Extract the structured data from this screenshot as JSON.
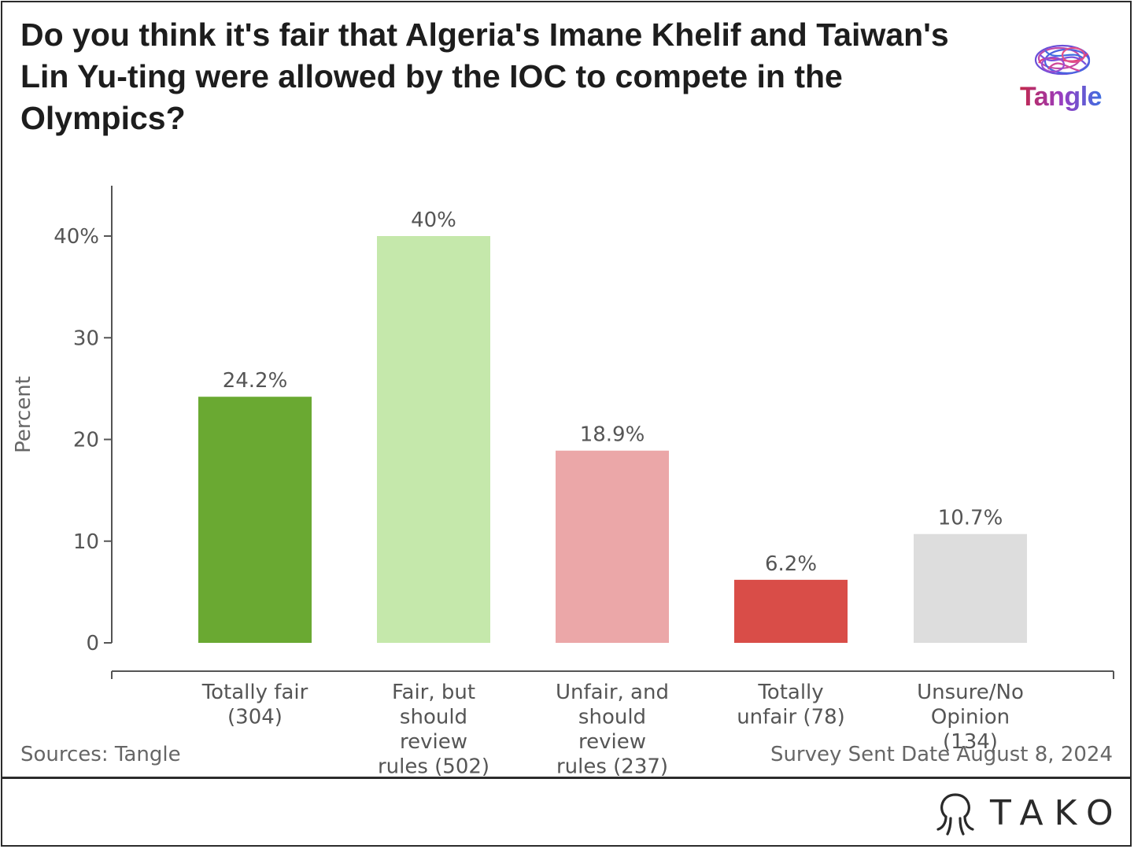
{
  "title": "Do you think it's fair that Algeria's Imane Khelif and Taiwan's Lin Yu-ting were allowed by the IOC to compete in the Olympics?",
  "brand_logo_text": "Tangle",
  "footer_brand": "TAKO",
  "source_text": "Sources: Tangle",
  "survey_text": "Survey Sent Date August 8, 2024",
  "colors": {
    "totally_fair": "#6aa932",
    "fair_review": "#c5e8ab",
    "unfair_review": "#eba7a8",
    "totally_unfair": "#d94d48",
    "unsure": "#dddddd",
    "axis": "#555555"
  },
  "chart_data": {
    "type": "bar",
    "title": "Do you think it's fair that Algeria's Imane Khelif and Taiwan's Lin Yu-ting were allowed by the IOC to compete in the Olympics?",
    "ylabel": "Percent",
    "xlabel": "",
    "ylim": [
      0,
      45
    ],
    "yticks": [
      0,
      10,
      20,
      30,
      40
    ],
    "ytick_labels": [
      "0",
      "10",
      "20",
      "30",
      "40%"
    ],
    "categories": [
      [
        "Totally fair",
        "(304)"
      ],
      [
        "Fair, but",
        "should",
        "review",
        "rules (502)"
      ],
      [
        "Unfair, and",
        "should",
        "review",
        "rules (237)"
      ],
      [
        "Totally",
        "unfair (78)"
      ],
      [
        "Unsure/No",
        "Opinion",
        "(134)"
      ]
    ],
    "values": [
      24.2,
      40,
      18.9,
      6.2,
      10.7
    ],
    "data_labels": [
      "24.2%",
      "40%",
      "18.9%",
      "6.2%",
      "10.7%"
    ],
    "bar_colors": [
      "#6aa932",
      "#c5e8ab",
      "#eba7a8",
      "#d94d48",
      "#dddddd"
    ],
    "grid": false,
    "legend": "none"
  }
}
